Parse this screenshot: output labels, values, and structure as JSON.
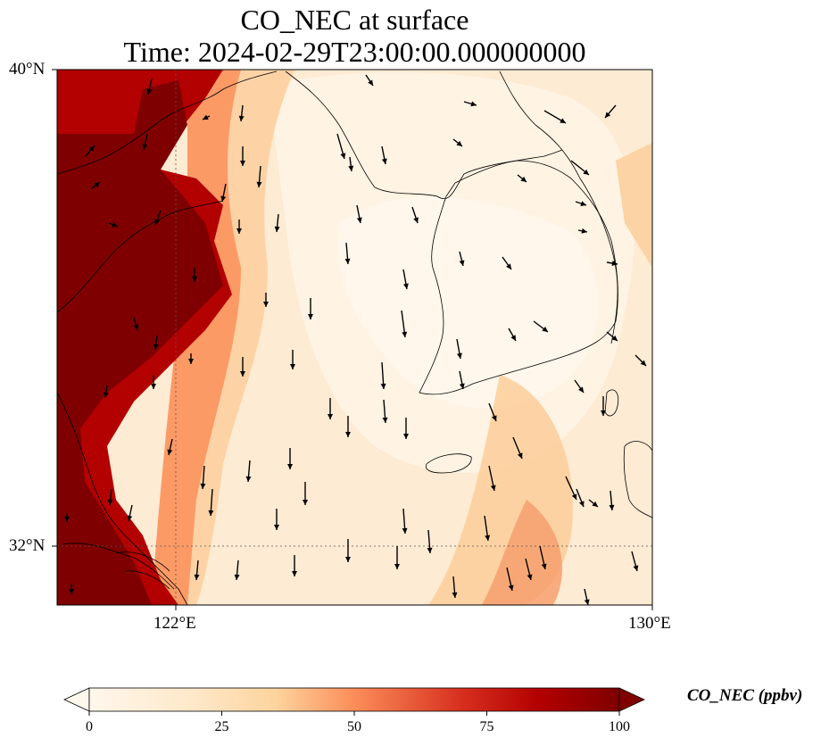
{
  "title_line1": "CO_NEC at surface",
  "title_line2": "Time: 2024-02-29T23:00:00.000000000",
  "axes": {
    "lat_labels": [
      "40°N",
      "32°N"
    ],
    "lon_labels": [
      "122°E",
      "130°E"
    ],
    "lat_range": [
      31,
      40
    ],
    "lon_range": [
      120,
      130
    ]
  },
  "colorbar": {
    "label": "CO_NEC (ppbv)",
    "ticks": [
      "0",
      "25",
      "50",
      "75",
      "100"
    ],
    "range": [
      0,
      100
    ],
    "colormap": "OrRd",
    "extend": "both"
  },
  "colors": {
    "low": "#fff7ec",
    "mid": "#fdd49e",
    "high": "#d7301f",
    "max": "#7f0000"
  },
  "layers": [
    "co-concentration-field",
    "wind-vectors",
    "coastlines",
    "gridlines"
  ]
}
